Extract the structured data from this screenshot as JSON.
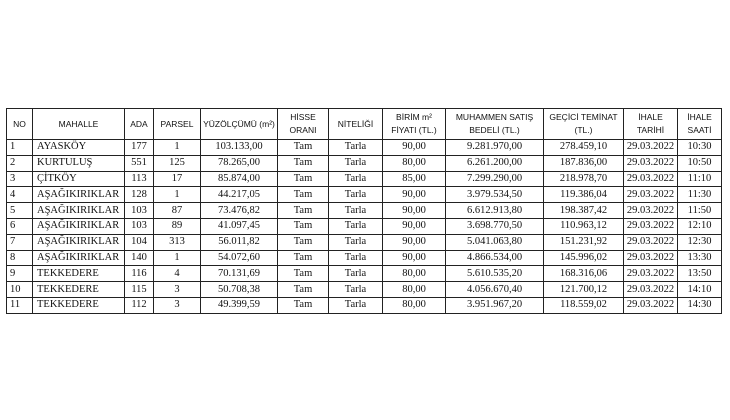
{
  "headers": [
    "NO",
    "MAHALLE",
    "ADA",
    "PARSEL",
    "YÜZÖLÇÜMÜ (m²)",
    "HİSSE ORANI",
    "NİTELİĞİ",
    "BİRİM m² FİYATI (TL.)",
    "MUHAMMEN SATIŞ BEDELİ (TL.)",
    "GEÇİCİ TEMİNAT (TL.)",
    "İHALE TARİHİ",
    "İHALE SAATİ"
  ],
  "rows": [
    [
      "1",
      "AYASKÖY",
      "177",
      "1",
      "103.133,00",
      "Tam",
      "Tarla",
      "90,00",
      "9.281.970,00",
      "278.459,10",
      "29.03.2022",
      "10:30"
    ],
    [
      "2",
      "KURTULUŞ",
      "551",
      "125",
      "78.265,00",
      "Tam",
      "Tarla",
      "80,00",
      "6.261.200,00",
      "187.836,00",
      "29.03.2022",
      "10:50"
    ],
    [
      "3",
      "ÇİTKÖY",
      "113",
      "17",
      "85.874,00",
      "Tam",
      "Tarla",
      "85,00",
      "7.299.290,00",
      "218.978,70",
      "29.03.2022",
      "11:10"
    ],
    [
      "4",
      "AŞAĞIKIRIKLAR",
      "128",
      "1",
      "44.217,05",
      "Tam",
      "Tarla",
      "90,00",
      "3.979.534,50",
      "119.386,04",
      "29.03.2022",
      "11:30"
    ],
    [
      "5",
      "AŞAĞIKIRIKLAR",
      "103",
      "87",
      "73.476,82",
      "Tam",
      "Tarla",
      "90,00",
      "6.612.913,80",
      "198.387,42",
      "29.03.2022",
      "11:50"
    ],
    [
      "6",
      "AŞAĞIKIRIKLAR",
      "103",
      "89",
      "41.097,45",
      "Tam",
      "Tarla",
      "90,00",
      "3.698.770,50",
      "110.963,12",
      "29.03.2022",
      "12:10"
    ],
    [
      "7",
      "AŞAĞIKIRIKLAR",
      "104",
      "313",
      "56.011,82",
      "Tam",
      "Tarla",
      "90,00",
      "5.041.063,80",
      "151.231,92",
      "29.03.2022",
      "12:30"
    ],
    [
      "8",
      "AŞAĞIKIRIKLAR",
      "140",
      "1",
      "54.072,60",
      "Tam",
      "Tarla",
      "90,00",
      "4.866.534,00",
      "145.996,02",
      "29.03.2022",
      "13:30"
    ],
    [
      "9",
      "TEKKEDERE",
      "116",
      "4",
      "70.131,69",
      "Tam",
      "Tarla",
      "80,00",
      "5.610.535,20",
      "168.316,06",
      "29.03.2022",
      "13:50"
    ],
    [
      "10",
      "TEKKEDERE",
      "115",
      "3",
      "50.708,38",
      "Tam",
      "Tarla",
      "80,00",
      "4.056.670,40",
      "121.700,12",
      "29.03.2022",
      "14:10"
    ],
    [
      "11",
      "TEKKEDERE",
      "112",
      "3",
      "49.399,59",
      "Tam",
      "Tarla",
      "80,00",
      "3.951.967,20",
      "118.559,02",
      "29.03.2022",
      "14:30"
    ]
  ]
}
